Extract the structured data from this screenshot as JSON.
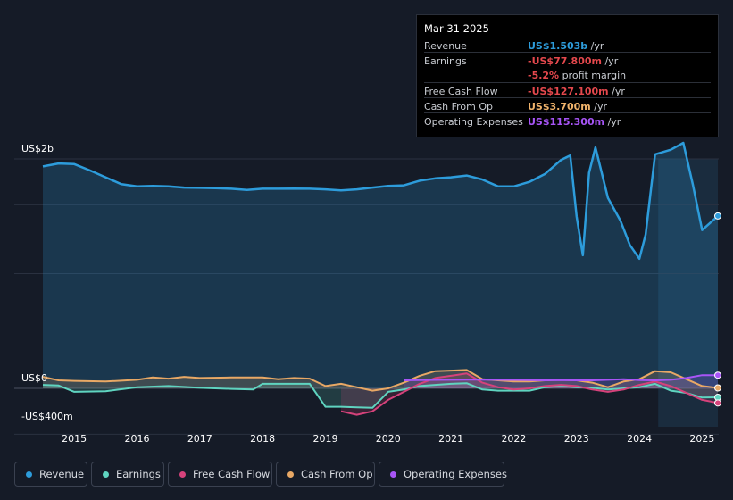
{
  "tooltip": {
    "date": "Mar 31 2025",
    "rows": [
      {
        "label": "Revenue",
        "value": "US$1.503b",
        "unit": " /yr",
        "color": "#2d9cdb"
      },
      {
        "label": "Earnings",
        "value": "-US$77.800m",
        "unit": " /yr",
        "color": "#e5484d"
      },
      {
        "label": "",
        "value": "-5.2%",
        "unit": " profit margin",
        "color": "#e5484d"
      },
      {
        "label": "Free Cash Flow",
        "value": "-US$127.100m",
        "unit": " /yr",
        "color": "#e5484d"
      },
      {
        "label": "Cash From Op",
        "value": "US$3.700m",
        "unit": " /yr",
        "color": "#f0b36b"
      },
      {
        "label": "Operating Expenses",
        "value": "US$115.300m",
        "unit": " /yr",
        "color": "#a855f7"
      }
    ]
  },
  "legend": [
    {
      "label": "Revenue",
      "color": "#2d9cdb"
    },
    {
      "label": "Earnings",
      "color": "#5fd4c0"
    },
    {
      "label": "Free Cash Flow",
      "color": "#d6427b"
    },
    {
      "label": "Cash From Op",
      "color": "#e8a865"
    },
    {
      "label": "Operating Expenses",
      "color": "#a855f7"
    }
  ],
  "chart_data": {
    "type": "area",
    "ylabels": [
      "US$2b",
      "US$0",
      "-US$400m"
    ],
    "xticks": [
      "2015",
      "2016",
      "2017",
      "2018",
      "2019",
      "2020",
      "2021",
      "2022",
      "2023",
      "2024",
      "2025"
    ],
    "ylim": [
      -400,
      2000
    ],
    "yunit": "US$m",
    "forecast_highlight_start": 2024.3,
    "grid": true,
    "series": [
      {
        "name": "Revenue",
        "color": "#2d9cdb",
        "fill": true,
        "x": [
          2014.5,
          2014.75,
          2015.0,
          2015.25,
          2015.5,
          2015.75,
          2016.0,
          2016.25,
          2016.5,
          2016.75,
          2017.0,
          2017.25,
          2017.5,
          2017.75,
          2018.0,
          2018.25,
          2018.5,
          2018.75,
          2019.0,
          2019.25,
          2019.5,
          2019.75,
          2020.0,
          2020.25,
          2020.5,
          2020.75,
          2021.0,
          2021.25,
          2021.5,
          2021.75,
          2022.0,
          2022.25,
          2022.5,
          2022.75,
          2022.9,
          2023.0,
          2023.1,
          2023.2,
          2023.3,
          2023.5,
          2023.7,
          2023.85,
          2024.0,
          2024.1,
          2024.25,
          2024.5,
          2024.7,
          2024.85,
          2025.0,
          2025.25
        ],
        "values": [
          1935,
          1960,
          1955,
          1900,
          1840,
          1780,
          1760,
          1765,
          1760,
          1750,
          1748,
          1745,
          1740,
          1730,
          1740,
          1740,
          1742,
          1740,
          1735,
          1725,
          1735,
          1750,
          1765,
          1770,
          1810,
          1830,
          1840,
          1855,
          1820,
          1760,
          1760,
          1800,
          1870,
          1990,
          2030,
          1500,
          1160,
          1880,
          2100,
          1660,
          1460,
          1250,
          1130,
          1340,
          2040,
          2080,
          2140,
          1780,
          1380,
          1503
        ]
      },
      {
        "name": "Earnings",
        "color": "#5fd4c0",
        "fill": true,
        "x": [
          2014.5,
          2014.75,
          2015.0,
          2015.5,
          2016.0,
          2016.5,
          2017.0,
          2017.5,
          2017.85,
          2018.0,
          2018.25,
          2018.5,
          2018.75,
          2019.0,
          2019.25,
          2019.5,
          2019.75,
          2020.0,
          2020.25,
          2020.5,
          2020.75,
          2021.0,
          2021.25,
          2021.5,
          2021.75,
          2022.0,
          2022.25,
          2022.5,
          2022.75,
          2023.0,
          2023.25,
          2023.5,
          2023.75,
          2024.0,
          2024.25,
          2024.5,
          2024.75,
          2025.0,
          2025.25
        ],
        "values": [
          30,
          25,
          -30,
          -25,
          10,
          20,
          5,
          -5,
          -10,
          40,
          40,
          40,
          40,
          -160,
          -160,
          -165,
          -170,
          -30,
          -10,
          20,
          30,
          40,
          45,
          -10,
          -20,
          -20,
          -20,
          10,
          20,
          10,
          5,
          -10,
          0,
          10,
          40,
          -20,
          -40,
          -80,
          -78
        ]
      },
      {
        "name": "Free Cash Flow",
        "color": "#d6427b",
        "fill": true,
        "x": [
          2019.25,
          2019.5,
          2019.75,
          2020.0,
          2020.25,
          2020.5,
          2020.75,
          2021.0,
          2021.25,
          2021.5,
          2021.75,
          2022.0,
          2022.25,
          2022.5,
          2022.75,
          2023.0,
          2023.25,
          2023.5,
          2023.75,
          2024.0,
          2024.25,
          2024.5,
          2024.75,
          2025.0,
          2025.25
        ],
        "values": [
          -200,
          -230,
          -200,
          -100,
          -30,
          40,
          90,
          110,
          130,
          50,
          10,
          -10,
          0,
          20,
          30,
          20,
          -10,
          -30,
          -10,
          30,
          60,
          20,
          -40,
          -100,
          -127
        ]
      },
      {
        "name": "Cash From Op",
        "color": "#e8a865",
        "fill": true,
        "x": [
          2014.5,
          2014.75,
          2015.0,
          2015.5,
          2016.0,
          2016.25,
          2016.5,
          2016.75,
          2017.0,
          2017.5,
          2018.0,
          2018.25,
          2018.5,
          2018.75,
          2019.0,
          2019.25,
          2019.5,
          2019.75,
          2020.0,
          2020.25,
          2020.5,
          2020.75,
          2021.0,
          2021.25,
          2021.5,
          2021.75,
          2022.0,
          2022.25,
          2022.5,
          2022.75,
          2023.0,
          2023.25,
          2023.5,
          2023.75,
          2024.0,
          2024.25,
          2024.5,
          2024.75,
          2025.0,
          2025.25
        ],
        "values": [
          100,
          70,
          65,
          60,
          75,
          95,
          85,
          100,
          90,
          95,
          95,
          80,
          90,
          85,
          20,
          40,
          10,
          -20,
          0,
          50,
          110,
          150,
          155,
          160,
          80,
          70,
          60,
          60,
          70,
          75,
          70,
          50,
          10,
          60,
          80,
          150,
          140,
          80,
          20,
          4
        ]
      },
      {
        "name": "Operating Expenses",
        "color": "#a855f7",
        "fill": true,
        "x": [
          2020.25,
          2020.5,
          2020.75,
          2021.0,
          2021.25,
          2021.5,
          2021.75,
          2022.0,
          2022.25,
          2022.5,
          2022.75,
          2023.0,
          2023.25,
          2023.5,
          2023.75,
          2024.0,
          2024.25,
          2024.5,
          2024.75,
          2025.0,
          2025.25
        ],
        "values": [
          70,
          72,
          74,
          75,
          76,
          76,
          75,
          74,
          72,
          70,
          72,
          70,
          70,
          75,
          80,
          72,
          70,
          75,
          90,
          115,
          115
        ]
      }
    ]
  }
}
